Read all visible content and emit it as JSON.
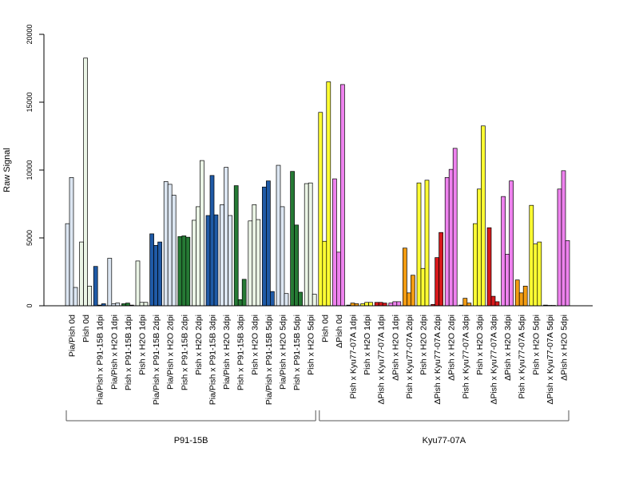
{
  "chart_data": {
    "type": "bar",
    "title": "",
    "xlabel": "",
    "ylabel": "Raw Signal",
    "ylim": [
      0,
      20000
    ],
    "yticks": [
      0,
      5000,
      10000,
      15000,
      20000
    ],
    "grid": false,
    "legend": "none",
    "categories": [
      "Pia/Pish 0d",
      "Pish 0d",
      "Pia/Pish x P91-15B 1dpi",
      "Pia/Pish x H2O 1dpi",
      "Pish x P91-15B 1dpi",
      "Pish x H2O 1dpi",
      "Pia/Pish x P91-15B 2dpi",
      "Pia/Pish x H2O 2dpi",
      "Pish x P91-15B 2dpi",
      "Pish x H2O 2dpi",
      "Pia/Pish x P91-15B 3dpi",
      "Pia/Pish x H2O 3dpi",
      "Pish x P91-15B 3dpi",
      "Pish x H2O 3dpi",
      "Pia/Pish x P91-15B 5dpi",
      "Pia/Pish x H2O 5dpi",
      "Pish x P91-15B 5dpi",
      "Pish x H2O 5dpi",
      "Pish 0d",
      "ΔPish 0d",
      "Pish x Kyu77-07A 1dpi",
      "Pish x H2O 1dpi",
      "ΔPish x Kyu77-07A 1dpi",
      "ΔPish x H2O 1dpi",
      "Pish x Kyu77-07A 2dpi",
      "Pish x H2O 2dpi",
      "ΔPish x Kyu77-07A 2dpi",
      "ΔPish x H2O 2dpi",
      "Pish x Kyu77-07A 3dpi",
      "Pish x H2O 3dpi",
      "ΔPish x Kyu77-07A 3dpi",
      "ΔPish x H2O 3dpi",
      "Pish x Kyu77-07A 5dpi",
      "Pish x H2O 5dpi",
      "ΔPish x Kyu77-07A 5dpi",
      "ΔPish x H2O 5dpi"
    ],
    "colors": [
      "#dce6f2",
      "#ebf5e6",
      "#1f5aa6",
      "#dce6f2",
      "#267a35",
      "#ebf5e6",
      "#1f5aa6",
      "#dce6f2",
      "#267a35",
      "#ebf5e6",
      "#1f5aa6",
      "#dce6f2",
      "#267a35",
      "#ebf5e6",
      "#1f5aa6",
      "#dce6f2",
      "#267a35",
      "#ebf5e6",
      "#ffff33",
      "#ee82ee",
      "#f39c12",
      "#ffff33",
      "#d7191c",
      "#ee82ee",
      "#f39c12",
      "#ffff33",
      "#d7191c",
      "#ee82ee",
      "#f39c12",
      "#ffff33",
      "#d7191c",
      "#ee82ee",
      "#f39c12",
      "#ffff33",
      "#d7191c",
      "#ee82ee"
    ],
    "values": [
      [
        6050,
        9450,
        1350
      ],
      [
        4700,
        18250,
        1450
      ],
      [
        2900,
        50,
        150
      ],
      [
        3500,
        150,
        200
      ],
      [
        150,
        200,
        50
      ],
      [
        3300,
        250,
        250
      ],
      [
        5300,
        4450,
        4700
      ],
      [
        9150,
        8950,
        8150
      ],
      [
        5100,
        5150,
        5050
      ],
      [
        6300,
        7300,
        10700
      ],
      [
        6650,
        9600,
        6700
      ],
      [
        7450,
        10200,
        6650
      ],
      [
        8850,
        450,
        1950
      ],
      [
        6250,
        7450,
        6350
      ],
      [
        8750,
        9200,
        1050
      ],
      [
        10350,
        7300,
        900
      ],
      [
        9900,
        5950,
        1000
      ],
      [
        9000,
        9050,
        850
      ],
      [
        14250,
        4750,
        16500
      ],
      [
        9350,
        3950,
        16300
      ],
      [
        50,
        200,
        150
      ],
      [
        150,
        250,
        250
      ],
      [
        250,
        250,
        200
      ],
      [
        200,
        300,
        300
      ],
      [
        4250,
        950,
        2250
      ],
      [
        9050,
        2750,
        9250
      ],
      [
        100,
        3550,
        5400
      ],
      [
        9450,
        10050,
        11600
      ],
      [
        50,
        550,
        200
      ],
      [
        6050,
        8600,
        13250
      ],
      [
        5750,
        700,
        300
      ],
      [
        8050,
        3800,
        9200
      ],
      [
        1900,
        950,
        1450
      ],
      [
        7400,
        4550,
        4700
      ],
      [
        50,
        30,
        20
      ],
      [
        8600,
        9950,
        4800
      ]
    ],
    "groups": [
      {
        "label": "P91-15B",
        "from": 0,
        "to": 17
      },
      {
        "label": "Kyu77-07A",
        "from": 18,
        "to": 35
      }
    ]
  }
}
